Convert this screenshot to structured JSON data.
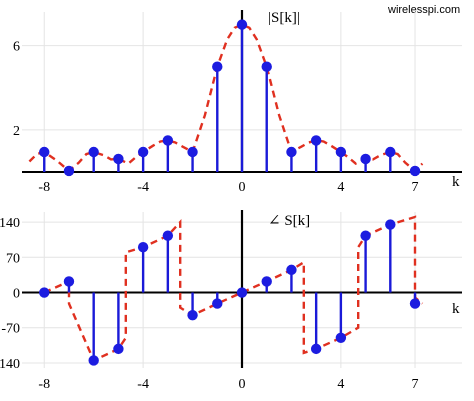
{
  "watermark": "wirelesspi.com",
  "chart_data": [
    {
      "type": "stem",
      "ylabel": "|S[k]|",
      "xlabel": "k",
      "xlim": [
        -8.9,
        8.9
      ],
      "ylim": [
        0,
        7.6
      ],
      "xticks": [
        -8,
        -4,
        0,
        4,
        7
      ],
      "xtick_labels": [
        "-8",
        "-4",
        "0",
        "4",
        "7"
      ],
      "yticks": [
        2,
        6
      ],
      "ytick_labels": [
        "2",
        "6"
      ],
      "grid": true,
      "k": [
        -8,
        -7,
        -6,
        -5,
        -4,
        -3,
        -2,
        -1,
        0,
        1,
        2,
        3,
        4,
        5,
        6,
        7
      ],
      "values": [
        0.95,
        0.05,
        0.95,
        0.62,
        0.95,
        1.5,
        0.95,
        5.0,
        7.0,
        5.0,
        0.95,
        1.5,
        0.95,
        0.62,
        0.95,
        0.05
      ],
      "envelope": {
        "style": "dashed",
        "color": "#e03020",
        "x": [
          -8.6,
          -8.3,
          -8,
          -7.5,
          -7,
          -6.6,
          -6.3,
          -6,
          -5.6,
          -5.3,
          -5,
          -4.6,
          -4.3,
          -4,
          -3.6,
          -3.3,
          -3,
          -2.7,
          -2.4,
          -2,
          -1.5,
          -1,
          -0.6,
          -0.3,
          0,
          0.3,
          0.6,
          1,
          1.5,
          2,
          2.4,
          2.7,
          3,
          3.3,
          3.6,
          4,
          4.3,
          4.6,
          5,
          5.3,
          5.6,
          6,
          6.3,
          6.6,
          7,
          7.3
        ],
        "y": [
          0.5,
          0.85,
          0.95,
          0.55,
          0.05,
          0.45,
          0.85,
          0.95,
          0.8,
          0.6,
          0.62,
          0.4,
          0.7,
          0.95,
          1.25,
          1.45,
          1.5,
          1.4,
          1.2,
          0.95,
          2.7,
          5.0,
          6.3,
          6.85,
          7.0,
          6.85,
          6.3,
          5.0,
          2.7,
          0.95,
          1.2,
          1.4,
          1.5,
          1.45,
          1.25,
          0.95,
          0.7,
          0.4,
          0.62,
          0.6,
          0.8,
          0.95,
          0.85,
          0.45,
          0.05,
          0.4
        ]
      }
    },
    {
      "type": "stem",
      "ylabel": "∠ S[k]",
      "xlabel": "k",
      "xlim": [
        -8.9,
        8.9
      ],
      "ylim": [
        -150,
        160
      ],
      "xticks": [
        -8,
        -4,
        0,
        4,
        7
      ],
      "xtick_labels": [
        "-8",
        "-4",
        "0",
        "4",
        "7"
      ],
      "yticks": [
        -140,
        -70,
        0,
        70,
        140
      ],
      "ytick_labels": [
        "-140",
        "-70",
        "0",
        "70",
        "140"
      ],
      "grid": true,
      "k": [
        -8,
        -7,
        -6,
        -5,
        -4,
        -3,
        -2,
        -1,
        0,
        1,
        2,
        3,
        4,
        5,
        6,
        7
      ],
      "values": [
        0,
        22,
        -135,
        -112,
        90,
        113,
        -45,
        -22,
        0,
        22,
        45,
        -112,
        -90,
        113,
        135,
        -22
      ],
      "envelope": {
        "style": "dashed",
        "color": "#e03020",
        "x": [
          -8,
          -7,
          -7,
          -6,
          -5,
          -4.7,
          -4.7,
          -4,
          -3,
          -2.5,
          -2.5,
          -2,
          -1,
          0,
          1,
          2,
          2.5,
          2.5,
          3,
          4,
          4.7,
          4.7,
          5,
          6,
          7,
          7,
          7.3
        ],
        "y": [
          0,
          22,
          -22,
          -135,
          -112,
          -90,
          80,
          90,
          113,
          140,
          -30,
          -45,
          -22,
          0,
          22,
          45,
          60,
          -120,
          -112,
          -90,
          -70,
          90,
          113,
          135,
          150,
          -10,
          -22
        ]
      }
    }
  ]
}
